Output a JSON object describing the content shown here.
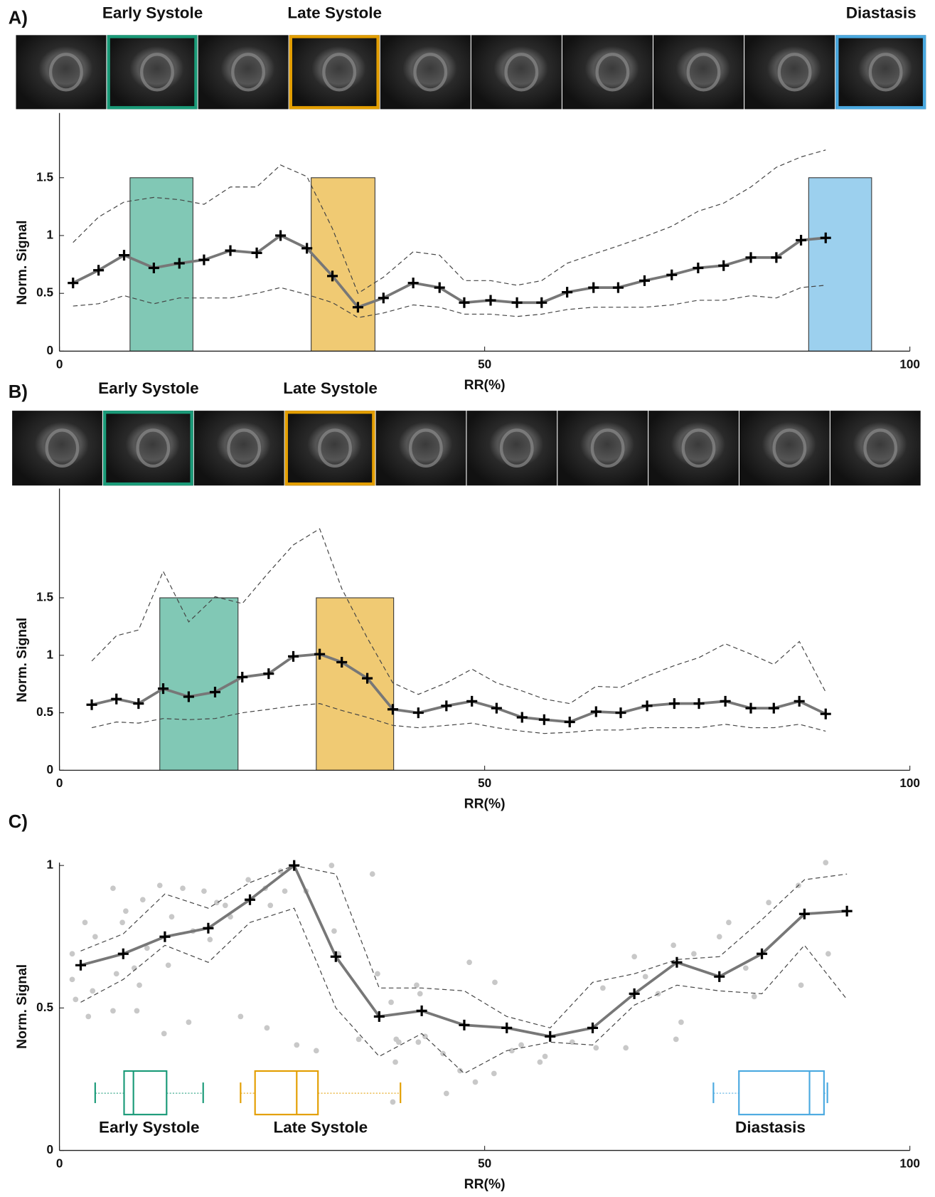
{
  "chart_data": [
    {
      "type": "line",
      "panel": "A)",
      "xlabel": "RR(%)",
      "ylabel": "Norm. Signal",
      "xlim": [
        0,
        100
      ],
      "xticks": [
        0,
        50,
        100
      ],
      "ylim": [
        0,
        2.06
      ],
      "yticks": [
        0,
        0.5,
        1,
        1.5
      ],
      "phases": [
        {
          "label": "Early Systole",
          "color": "#1a9a78",
          "xrange": [
            8.3,
            15.7
          ],
          "top": 1.5
        },
        {
          "label": "Late Systole",
          "color": "#e39e00",
          "xrange": [
            29.6,
            37.1
          ],
          "top": 1.5
        },
        {
          "label": "Diastasis",
          "color": "#4aa9e0",
          "xrange": [
            88.1,
            95.5
          ],
          "top": 1.5
        }
      ],
      "x": [
        1.6,
        4.6,
        7.6,
        11.1,
        14.1,
        17.0,
        20.1,
        23.2,
        26.0,
        29.1,
        32.1,
        35.1,
        38.1,
        41.6,
        44.7,
        47.6,
        50.7,
        53.8,
        56.7,
        59.7,
        62.8,
        65.7,
        68.8,
        72.0,
        75.1,
        78.1,
        81.3,
        84.3,
        87.2,
        90.1
      ],
      "series": [
        {
          "color": "#777777",
          "style": "mean",
          "values": [
            0.59,
            0.7,
            0.83,
            0.72,
            0.76,
            0.79,
            0.87,
            0.85,
            1.0,
            0.89,
            0.65,
            0.38,
            0.46,
            0.59,
            0.55,
            0.42,
            0.44,
            0.42,
            0.42,
            0.51,
            0.55,
            0.55,
            0.61,
            0.66,
            0.72,
            0.74,
            0.81,
            0.81,
            0.96,
            0.98
          ]
        },
        {
          "color": "#444444",
          "style": "dashed",
          "values": [
            0.94,
            1.16,
            1.29,
            1.33,
            1.31,
            1.27,
            1.42,
            1.42,
            1.61,
            1.51,
            1.06,
            0.5,
            0.64,
            0.86,
            0.83,
            0.61,
            0.61,
            0.57,
            0.61,
            0.76,
            0.84,
            0.91,
            0.99,
            1.08,
            1.21,
            1.28,
            1.42,
            1.59,
            1.68,
            1.74
          ]
        },
        {
          "color": "#444444",
          "style": "dashed",
          "values": [
            0.39,
            0.41,
            0.48,
            0.41,
            0.46,
            0.46,
            0.46,
            0.5,
            0.55,
            0.49,
            0.42,
            0.29,
            0.33,
            0.4,
            0.38,
            0.32,
            0.32,
            0.3,
            0.32,
            0.36,
            0.38,
            0.38,
            0.38,
            0.4,
            0.44,
            0.44,
            0.48,
            0.46,
            0.55,
            0.57
          ]
        }
      ]
    },
    {
      "type": "line",
      "panel": "B)",
      "xlabel": "RR(%)",
      "ylabel": "Norm. Signal",
      "xlim": [
        0,
        100
      ],
      "xticks": [
        0,
        50,
        100
      ],
      "ylim": [
        0,
        2.45
      ],
      "yticks": [
        0,
        0.5,
        1,
        1.5
      ],
      "phases": [
        {
          "label": "Early Systole",
          "color": "#1a9a78",
          "xrange": [
            11.8,
            21.0
          ],
          "top": 1.5
        },
        {
          "label": "Late Systole",
          "color": "#e39e00",
          "xrange": [
            30.2,
            39.3
          ],
          "top": 1.5
        }
      ],
      "x": [
        3.8,
        6.7,
        9.3,
        12.2,
        15.2,
        18.3,
        21.5,
        24.6,
        27.5,
        30.6,
        33.2,
        36.2,
        39.2,
        42.2,
        45.5,
        48.5,
        51.4,
        54.4,
        57.0,
        60.0,
        63.1,
        66.0,
        69.1,
        72.3,
        75.2,
        78.3,
        81.3,
        84.0,
        87.0,
        90.1
      ],
      "series": [
        {
          "color": "#777777",
          "style": "mean",
          "values": [
            0.57,
            0.62,
            0.58,
            0.71,
            0.64,
            0.68,
            0.81,
            0.84,
            0.99,
            1.01,
            0.94,
            0.8,
            0.53,
            0.5,
            0.56,
            0.6,
            0.54,
            0.46,
            0.44,
            0.42,
            0.51,
            0.5,
            0.56,
            0.58,
            0.58,
            0.6,
            0.54,
            0.54,
            0.6,
            0.49
          ]
        },
        {
          "color": "#444444",
          "style": "dashed",
          "values": [
            0.95,
            1.17,
            1.22,
            1.73,
            1.29,
            1.51,
            1.45,
            1.72,
            1.96,
            2.1,
            1.58,
            1.15,
            0.76,
            0.66,
            0.76,
            0.88,
            0.76,
            0.69,
            0.62,
            0.58,
            0.73,
            0.72,
            0.82,
            0.91,
            0.98,
            1.1,
            1.01,
            0.92,
            1.12,
            0.68
          ]
        },
        {
          "color": "#444444",
          "style": "dashed",
          "values": [
            0.37,
            0.42,
            0.41,
            0.45,
            0.44,
            0.45,
            0.5,
            0.53,
            0.56,
            0.58,
            0.52,
            0.46,
            0.39,
            0.37,
            0.39,
            0.41,
            0.37,
            0.34,
            0.32,
            0.33,
            0.35,
            0.35,
            0.37,
            0.37,
            0.37,
            0.4,
            0.37,
            0.37,
            0.4,
            0.34
          ]
        }
      ]
    },
    {
      "type": "line",
      "panel": "C)",
      "xlabel": "RR(%)",
      "ylabel": "Norm. Signal",
      "xlim": [
        0,
        100
      ],
      "xticks": [
        0,
        50,
        100
      ],
      "ylim": [
        0,
        1.01
      ],
      "yticks": [
        0,
        0.5,
        1
      ],
      "x": [
        2.5,
        7.5,
        12.4,
        17.5,
        22.4,
        27.6,
        32.5,
        37.6,
        42.6,
        47.6,
        52.6,
        57.7,
        62.7,
        67.6,
        72.6,
        77.6,
        82.6,
        87.6,
        92.6
      ],
      "series": [
        {
          "color": "#777777",
          "style": "mean",
          "values": [
            0.65,
            0.69,
            0.75,
            0.78,
            0.88,
            1.0,
            0.68,
            0.47,
            0.49,
            0.44,
            0.43,
            0.4,
            0.43,
            0.55,
            0.66,
            0.61,
            0.69,
            0.83,
            0.84
          ]
        },
        {
          "color": "#444444",
          "style": "dashed",
          "values": [
            0.7,
            0.76,
            0.9,
            0.85,
            0.94,
            1.0,
            0.97,
            0.57,
            0.57,
            0.56,
            0.47,
            0.43,
            0.59,
            0.62,
            0.67,
            0.68,
            0.81,
            0.95,
            0.97
          ]
        },
        {
          "color": "#444444",
          "style": "dashed",
          "values": [
            0.52,
            0.6,
            0.72,
            0.66,
            0.8,
            0.85,
            0.5,
            0.33,
            0.41,
            0.27,
            0.35,
            0.38,
            0.37,
            0.51,
            0.58,
            0.56,
            0.55,
            0.72,
            0.53
          ]
        }
      ],
      "scatter": {
        "color": "#c8c8c8",
        "x": [
          1.5,
          1.5,
          1.9,
          3.0,
          3.4,
          3.9,
          4.2,
          6.3,
          6.3,
          6.7,
          7.4,
          7.8,
          8.8,
          9.1,
          9.4,
          9.8,
          10.3,
          11.8,
          12.3,
          12.8,
          13.2,
          14.5,
          15.2,
          15.7,
          17.0,
          17.7,
          18.5,
          19.5,
          20.1,
          21.3,
          22.2,
          24.2,
          24.4,
          24.8,
          26.0,
          26.5,
          27.9,
          29.0,
          30.2,
          32.0,
          32.3,
          32.8,
          35.2,
          36.8,
          37.4,
          39.0,
          39.2,
          39.5,
          39.6,
          39.9,
          42.0,
          42.2,
          42.4,
          43.0,
          45.1,
          45.5,
          47.1,
          48.2,
          48.9,
          51.1,
          51.2,
          53.2,
          54.3,
          56.5,
          57.1,
          60.3,
          63.1,
          63.9,
          66.6,
          67.6,
          68.9,
          70.4,
          72.2,
          72.5,
          73.1,
          74.6,
          77.6,
          78.7,
          80.7,
          81.7,
          83.4,
          86.9,
          87.2,
          90.1,
          90.4
        ],
        "y": [
          0.69,
          0.6,
          0.53,
          0.8,
          0.47,
          0.56,
          0.75,
          0.92,
          0.49,
          0.62,
          0.8,
          0.84,
          0.64,
          0.49,
          0.58,
          0.88,
          0.71,
          0.93,
          0.41,
          0.65,
          0.82,
          0.92,
          0.45,
          0.77,
          0.91,
          0.74,
          0.87,
          0.86,
          0.82,
          0.47,
          0.95,
          0.92,
          0.43,
          0.86,
          0.98,
          0.91,
          0.37,
          0.91,
          0.35,
          1.0,
          0.77,
          0.69,
          0.39,
          0.97,
          0.62,
          0.52,
          0.17,
          0.31,
          0.39,
          0.38,
          0.58,
          0.38,
          0.55,
          0.4,
          0.34,
          0.2,
          0.28,
          0.66,
          0.24,
          0.27,
          0.59,
          0.35,
          0.37,
          0.31,
          0.33,
          0.38,
          0.36,
          0.57,
          0.36,
          0.68,
          0.61,
          0.55,
          0.72,
          0.39,
          0.45,
          0.69,
          0.75,
          0.8,
          0.64,
          0.54,
          0.87,
          0.93,
          0.58,
          1.01,
          0.69
        ]
      },
      "boxes": [
        {
          "label": "Early Systole",
          "color": "#1a9a78",
          "min": 4.2,
          "q1": 7.6,
          "median": 8.7,
          "q3": 12.6,
          "max": 16.9
        },
        {
          "label": "Late Systole",
          "color": "#e39e00",
          "min": 21.3,
          "q1": 23.0,
          "median": 27.9,
          "q3": 30.4,
          "max": 40.1
        },
        {
          "label": "Diastasis",
          "color": "#4aa9e0",
          "min": 76.9,
          "q1": 79.9,
          "median": 88.2,
          "q3": 89.9,
          "max": 90.3
        }
      ]
    }
  ]
}
